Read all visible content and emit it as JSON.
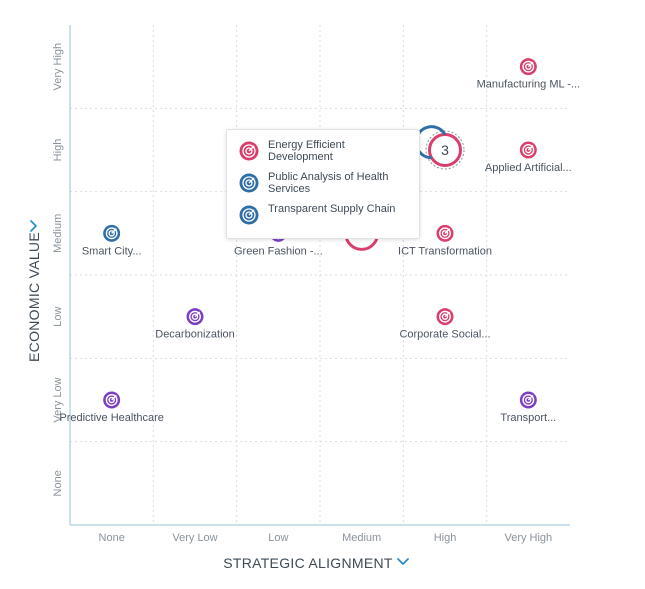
{
  "colors": {
    "red": "#d93f6c",
    "blue": "#2f6fa7",
    "purple": "#7b3fc4",
    "grid": "#d8dde2",
    "axis": "#b9d6e3",
    "accent": "#2a8fc7"
  },
  "chart_data": {
    "type": "scatter",
    "xlabel": "STRATEGIC ALIGNMENT",
    "ylabel": "ECONOMIC VALUE",
    "x_categories": [
      "None",
      "Very Low",
      "Low",
      "Medium",
      "High",
      "Very High"
    ],
    "y_categories": [
      "None",
      "Very Low",
      "Low",
      "Medium",
      "High",
      "Very High"
    ],
    "grid": true,
    "points": [
      {
        "label": "Manufacturing ML -...",
        "x": "Very High",
        "y": "Very High",
        "color": "red"
      },
      {
        "label": "Applied Artificial...",
        "x": "Very High",
        "y": "High",
        "color": "red"
      },
      {
        "label": "3",
        "x": "High",
        "y": "High",
        "color": "cluster",
        "count": 3
      },
      {
        "label": "Smart City...",
        "x": "None",
        "y": "Medium",
        "color": "blue"
      },
      {
        "label": "Green Fashion -...",
        "x": "Low",
        "y": "Medium",
        "color": "purple"
      },
      {
        "label": "",
        "x": "Medium",
        "y": "Medium",
        "color": "red"
      },
      {
        "label": "ICT Transformation",
        "x": "High",
        "y": "Medium",
        "color": "red"
      },
      {
        "label": "Decarbonization",
        "x": "Very Low",
        "y": "Low",
        "color": "purple"
      },
      {
        "label": "Corporate Social...",
        "x": "High",
        "y": "Low",
        "color": "red"
      },
      {
        "label": "Predictive Healthcare",
        "x": "None",
        "y": "Very Low",
        "color": "purple"
      },
      {
        "label": "Transport...",
        "x": "Very High",
        "y": "Very Low",
        "color": "purple"
      }
    ]
  },
  "tooltip": {
    "items": [
      {
        "label": "Energy Efficient Development",
        "color": "red"
      },
      {
        "label": "Public Analysis of Health Services",
        "color": "blue"
      },
      {
        "label": "Transparent Supply Chain",
        "color": "blue"
      }
    ]
  }
}
